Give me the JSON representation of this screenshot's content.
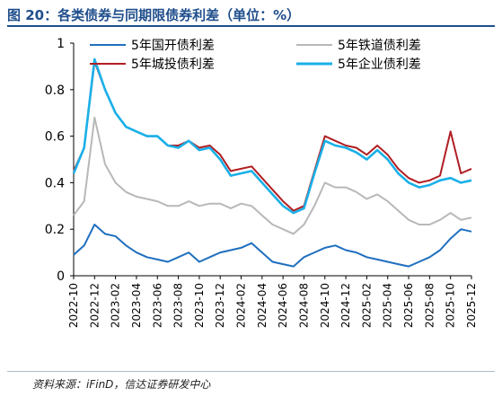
{
  "figure": {
    "title": "图 20：各类债券与同期限债券利差（单位：%）",
    "source": "资料来源：iFinD，信达证券研发中心"
  },
  "chart_data": {
    "type": "line",
    "ylim": [
      0,
      1
    ],
    "yticks": [
      "0",
      "0.2",
      "0.4",
      "0.6",
      "0.8",
      "1"
    ],
    "yticks_values": [
      0,
      0.2,
      0.4,
      0.6,
      0.8,
      1.0
    ],
    "xticks": [
      "2022-10",
      "2022-12",
      "2023-02",
      "2023-04",
      "2023-06",
      "2023-08",
      "2023-10",
      "2023-12",
      "2024-02",
      "2024-04",
      "2024-06",
      "2024-08",
      "2024-10",
      "2024-12",
      "2025-02",
      "2025-04",
      "2025-06",
      "2025-08",
      "2025-10",
      "2025-12"
    ],
    "legend_position": "top",
    "grid": false,
    "series": [
      {
        "name": "5年国开债利差",
        "color": "#1f6fbf",
        "x": [
          "2022-10",
          "2022-11",
          "2022-12",
          "2023-01",
          "2023-02",
          "2023-03",
          "2023-04",
          "2023-05",
          "2023-06",
          "2023-07",
          "2023-08",
          "2023-09",
          "2023-10",
          "2023-11",
          "2023-12",
          "2024-01",
          "2024-02",
          "2024-03",
          "2024-04",
          "2024-05",
          "2024-06",
          "2024-07",
          "2024-08",
          "2024-09",
          "2024-10",
          "2024-11",
          "2024-12",
          "2025-01",
          "2025-02",
          "2025-03",
          "2025-04",
          "2025-05",
          "2025-06",
          "2025-07",
          "2025-08",
          "2025-09",
          "2025-10",
          "2025-11",
          "2025-12"
        ],
        "values": [
          0.09,
          0.13,
          0.22,
          0.18,
          0.17,
          0.13,
          0.1,
          0.08,
          0.07,
          0.06,
          0.08,
          0.1,
          0.06,
          0.08,
          0.1,
          0.11,
          0.12,
          0.14,
          0.1,
          0.06,
          0.05,
          0.04,
          0.08,
          0.1,
          0.12,
          0.13,
          0.11,
          0.1,
          0.08,
          0.07,
          0.06,
          0.05,
          0.04,
          0.06,
          0.08,
          0.11,
          0.16,
          0.2,
          0.19
        ]
      },
      {
        "name": "5年铁道债利差",
        "color": "#b8b8b8",
        "x": [
          "2022-10",
          "2022-11",
          "2022-12",
          "2023-01",
          "2023-02",
          "2023-03",
          "2023-04",
          "2023-05",
          "2023-06",
          "2023-07",
          "2023-08",
          "2023-09",
          "2023-10",
          "2023-11",
          "2023-12",
          "2024-01",
          "2024-02",
          "2024-03",
          "2024-04",
          "2024-05",
          "2024-06",
          "2024-07",
          "2024-08",
          "2024-09",
          "2024-10",
          "2024-11",
          "2024-12",
          "2025-01",
          "2025-02",
          "2025-03",
          "2025-04",
          "2025-05",
          "2025-06",
          "2025-07",
          "2025-08",
          "2025-09",
          "2025-10",
          "2025-11",
          "2025-12"
        ],
        "values": [
          0.26,
          0.32,
          0.68,
          0.48,
          0.4,
          0.36,
          0.34,
          0.33,
          0.32,
          0.3,
          0.3,
          0.32,
          0.3,
          0.31,
          0.31,
          0.29,
          0.31,
          0.3,
          0.26,
          0.22,
          0.2,
          0.18,
          0.22,
          0.3,
          0.4,
          0.38,
          0.38,
          0.36,
          0.33,
          0.35,
          0.32,
          0.28,
          0.24,
          0.22,
          0.22,
          0.24,
          0.27,
          0.24,
          0.25
        ]
      },
      {
        "name": "5年城投债利差",
        "color": "#b01e23",
        "x": [
          "2022-10",
          "2022-11",
          "2022-12",
          "2023-01",
          "2023-02",
          "2023-03",
          "2023-04",
          "2023-05",
          "2023-06",
          "2023-07",
          "2023-08",
          "2023-09",
          "2023-10",
          "2023-11",
          "2023-12",
          "2024-01",
          "2024-02",
          "2024-03",
          "2024-04",
          "2024-05",
          "2024-06",
          "2024-07",
          "2024-08",
          "2024-09",
          "2024-10",
          "2024-11",
          "2024-12",
          "2025-01",
          "2025-02",
          "2025-03",
          "2025-04",
          "2025-05",
          "2025-06",
          "2025-07",
          "2025-08",
          "2025-09",
          "2025-10",
          "2025-11",
          "2025-12"
        ],
        "values": [
          0.45,
          0.55,
          0.92,
          0.8,
          0.7,
          0.64,
          0.62,
          0.6,
          0.6,
          0.56,
          0.56,
          0.58,
          0.55,
          0.56,
          0.52,
          0.45,
          0.46,
          0.47,
          0.42,
          0.37,
          0.32,
          0.28,
          0.3,
          0.45,
          0.6,
          0.58,
          0.56,
          0.55,
          0.52,
          0.56,
          0.52,
          0.46,
          0.42,
          0.4,
          0.41,
          0.43,
          0.62,
          0.44,
          0.46
        ]
      },
      {
        "name": "5年企业债利差",
        "color": "#1ab0e8",
        "x": [
          "2022-10",
          "2022-11",
          "2022-12",
          "2023-01",
          "2023-02",
          "2023-03",
          "2023-04",
          "2023-05",
          "2023-06",
          "2023-07",
          "2023-08",
          "2023-09",
          "2023-10",
          "2023-11",
          "2023-12",
          "2024-01",
          "2024-02",
          "2024-03",
          "2024-04",
          "2024-05",
          "2024-06",
          "2024-07",
          "2024-08",
          "2024-09",
          "2024-10",
          "2024-11",
          "2024-12",
          "2025-01",
          "2025-02",
          "2025-03",
          "2025-04",
          "2025-05",
          "2025-06",
          "2025-07",
          "2025-08",
          "2025-09",
          "2025-10",
          "2025-11",
          "2025-12"
        ],
        "values": [
          0.44,
          0.55,
          0.93,
          0.8,
          0.7,
          0.64,
          0.62,
          0.6,
          0.6,
          0.56,
          0.55,
          0.58,
          0.54,
          0.55,
          0.5,
          0.43,
          0.44,
          0.45,
          0.4,
          0.35,
          0.3,
          0.27,
          0.29,
          0.44,
          0.58,
          0.56,
          0.55,
          0.53,
          0.5,
          0.54,
          0.5,
          0.44,
          0.4,
          0.38,
          0.39,
          0.41,
          0.42,
          0.4,
          0.41
        ]
      }
    ]
  }
}
